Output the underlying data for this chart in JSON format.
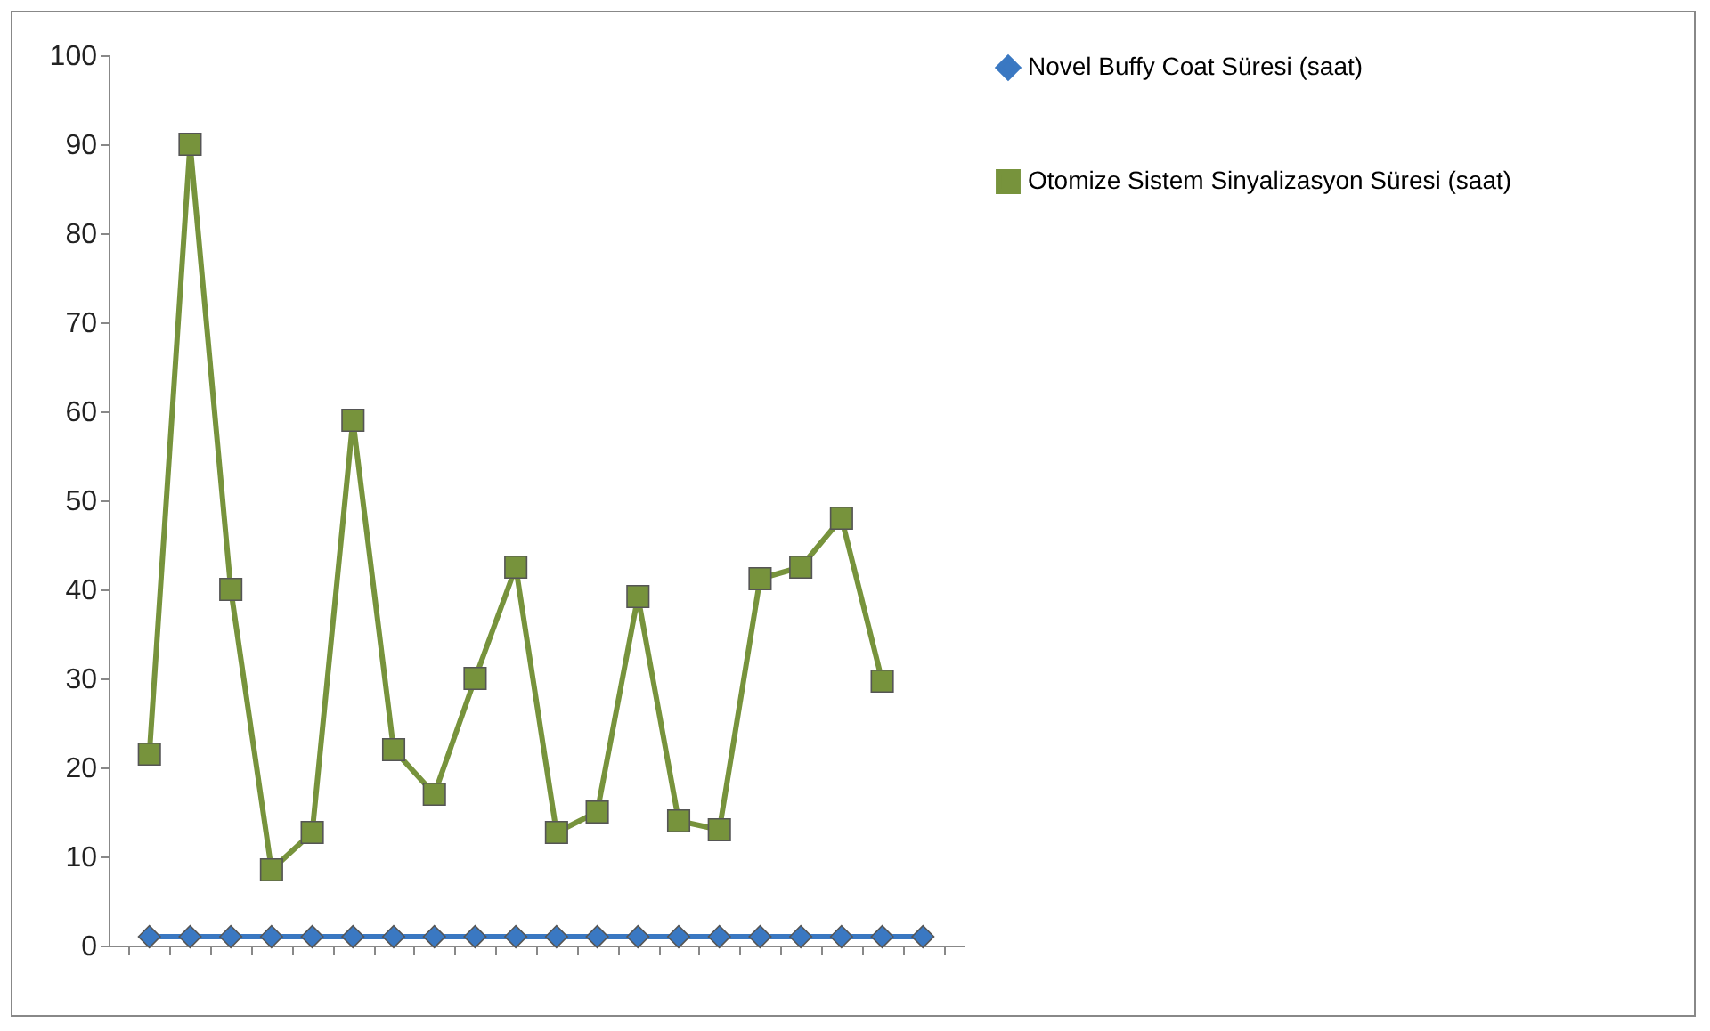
{
  "chart_data": {
    "type": "line",
    "categories": [
      null,
      null,
      null,
      null,
      null,
      null,
      null,
      null,
      null,
      null,
      null,
      null,
      null,
      null,
      null,
      null,
      null,
      null,
      null,
      null
    ],
    "series": [
      {
        "name": "Novel Buffy Coat Süresi (saat)",
        "color": "#3a78c2",
        "marker": "diamond",
        "values": [
          1,
          1,
          1,
          1,
          1,
          1,
          1,
          1,
          1,
          1,
          1,
          1,
          1,
          1,
          1,
          1,
          1,
          1,
          1,
          1
        ]
      },
      {
        "name": "Otomize Sistem Sinyalizasyon Süresi (saat)",
        "color": "#77933c",
        "marker": "square",
        "values": [
          21.5,
          90,
          40,
          8.5,
          12.7,
          59,
          22,
          17,
          30,
          42.5,
          12.7,
          15,
          39.2,
          14,
          13,
          41.2,
          42.5,
          48,
          29.7,
          null
        ]
      }
    ],
    "ylim": [
      0,
      100
    ],
    "yticks": [
      0,
      10,
      20,
      30,
      40,
      50,
      60,
      70,
      80,
      90,
      100
    ],
    "grid": false,
    "line_style": "solid",
    "legend": "right",
    "tick_labels": "y"
  }
}
